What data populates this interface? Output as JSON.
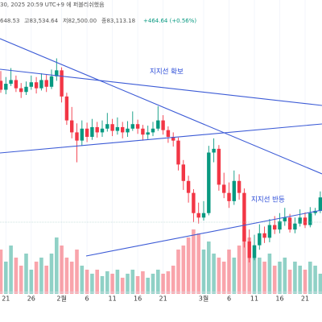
{
  "chart_data": {
    "type": "candlestick",
    "header": {
      "published": "30, 2025 20:59 UTC+9 에 퍼블리쉬했음",
      "open": "648.53",
      "high": "고83,534.64",
      "low": "저82,500.00",
      "close": "종83,113.18",
      "change": "+464.64 (+0.56%)"
    },
    "annotations": [
      "지지선 확보",
      "지지선 반등"
    ],
    "up_color": "#089981",
    "down_color": "#f23645",
    "xticks": [
      {
        "value": 1,
        "label": "21"
      },
      {
        "value": 6,
        "label": "26"
      },
      {
        "value": 12,
        "label": "2월"
      },
      {
        "value": 17,
        "label": "6"
      },
      {
        "value": 22,
        "label": "11"
      },
      {
        "value": 27,
        "label": "16"
      },
      {
        "value": 32,
        "label": "21"
      },
      {
        "value": 40,
        "label": "3월"
      },
      {
        "value": 45,
        "label": "6"
      },
      {
        "value": 50,
        "label": "11"
      },
      {
        "value": 55,
        "label": "16"
      },
      {
        "value": 60,
        "label": "21"
      }
    ],
    "ylim": [
      72000,
      107000
    ],
    "vlim": [
      0,
      100
    ],
    "open": [
      100500,
      99300,
      100100,
      100600,
      99500,
      99000,
      99700,
      100300,
      99500,
      100600,
      99700,
      101100,
      101900,
      98400,
      95200,
      93600,
      92500,
      94100,
      93000,
      94300,
      93600,
      94100,
      94700,
      93800,
      94300,
      93600,
      94100,
      94700,
      94100,
      93300,
      93600,
      94100,
      95200,
      93900,
      93000,
      92500,
      89300,
      87100,
      85500,
      82800,
      82200,
      82800,
      90900,
      91400,
      86600,
      85500,
      84400,
      87100,
      85500,
      79000,
      76800,
      78500,
      80100,
      79500,
      81200,
      80600,
      81700,
      82200,
      80600,
      81400,
      82200,
      81200,
      82800,
      83100
    ],
    "high": [
      101800,
      101000,
      102200,
      101200,
      100200,
      100400,
      101200,
      101000,
      101500,
      101300,
      102000,
      103500,
      102300,
      98900,
      97000,
      94800,
      95200,
      94900,
      95400,
      95000,
      95200,
      96200,
      95400,
      95600,
      95000,
      95100,
      96400,
      95300,
      94600,
      94500,
      95000,
      97100,
      95900,
      94400,
      93600,
      92900,
      89900,
      87800,
      86000,
      84200,
      84400,
      91800,
      92800,
      91900,
      88200,
      86900,
      88500,
      88000,
      86100,
      80600,
      79900,
      81300,
      81000,
      82000,
      82400,
      82800,
      83500,
      82700,
      82200,
      83300,
      82900,
      83600,
      83500,
      85700
    ],
    "low": [
      98900,
      98700,
      99800,
      99000,
      98200,
      98600,
      99300,
      98800,
      99200,
      99000,
      99400,
      100500,
      97600,
      94600,
      92800,
      89600,
      91800,
      92300,
      92600,
      92900,
      93000,
      93700,
      93100,
      93300,
      92800,
      93000,
      93800,
      93400,
      92500,
      92700,
      93100,
      93800,
      93300,
      92200,
      91700,
      88500,
      85900,
      84200,
      81600,
      81400,
      81800,
      82500,
      89600,
      85800,
      84800,
      83500,
      83900,
      84600,
      78200,
      76200,
      76500,
      77900,
      78800,
      78900,
      80000,
      80100,
      81100,
      80200,
      80100,
      81000,
      80800,
      80900,
      82500,
      82800
    ],
    "close": [
      99300,
      100100,
      100600,
      99500,
      99000,
      99700,
      100300,
      99500,
      100600,
      99700,
      101100,
      101900,
      98400,
      95200,
      93600,
      92500,
      94100,
      93000,
      94300,
      93600,
      94100,
      94700,
      93800,
      94300,
      93600,
      94100,
      94700,
      94100,
      93300,
      93600,
      94100,
      95200,
      93900,
      93000,
      92500,
      89300,
      87100,
      85500,
      82800,
      82200,
      82800,
      90900,
      91400,
      86600,
      85500,
      84400,
      87100,
      85500,
      79000,
      76800,
      78500,
      80100,
      79500,
      81200,
      80600,
      81700,
      82200,
      80600,
      81400,
      82200,
      81200,
      82800,
      83100,
      84900
    ],
    "volume": [
      55,
      40,
      60,
      45,
      35,
      50,
      30,
      40,
      45,
      35,
      50,
      70,
      60,
      45,
      40,
      55,
      35,
      30,
      25,
      30,
      22,
      28,
      25,
      30,
      20,
      25,
      30,
      22,
      28,
      20,
      25,
      30,
      25,
      28,
      35,
      55,
      60,
      70,
      80,
      75,
      55,
      65,
      50,
      45,
      40,
      55,
      45,
      60,
      80,
      70,
      60,
      45,
      40,
      50,
      35,
      40,
      45,
      30,
      40,
      35,
      30,
      40,
      35,
      25
    ]
  }
}
